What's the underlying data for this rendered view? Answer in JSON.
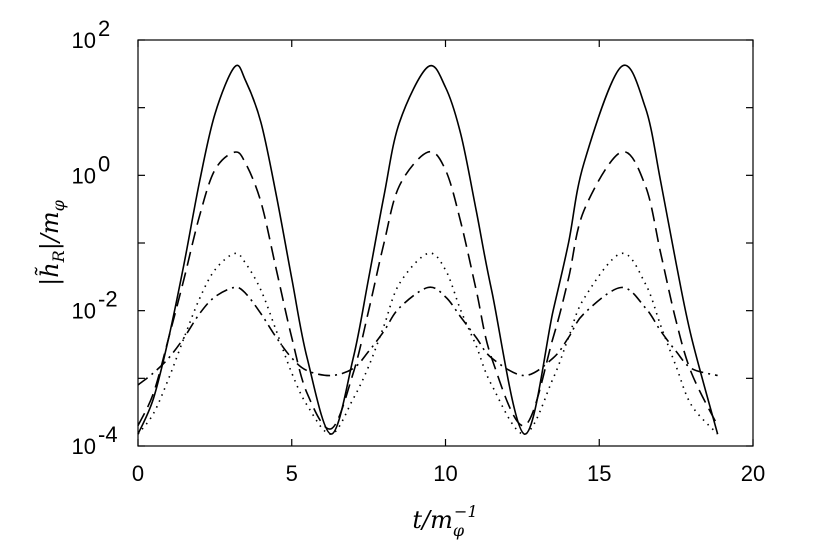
{
  "chart_data": {
    "type": "line",
    "xlabel": "t/m_φ^{-1}",
    "ylabel": "|h̃_R|/m_φ",
    "xlim": [
      0,
      20
    ],
    "ylim": [
      0.0001,
      100
    ],
    "yscale": "log",
    "grid": false,
    "xticks": [
      0,
      5,
      10,
      15,
      20
    ],
    "yticks": [
      {
        "value": 0.0001,
        "base": "10",
        "exp": "-4"
      },
      {
        "value": 0.01,
        "base": "10",
        "exp": "-2"
      },
      {
        "value": 1,
        "base": "10",
        "exp": "0"
      },
      {
        "value": 100,
        "base": "10",
        "exp": "2"
      }
    ],
    "series": [
      {
        "style": "solid",
        "x": [
          0,
          0.5,
          1.0,
          1.5,
          2.0,
          2.5,
          3.1416,
          3.5,
          4.0,
          4.5,
          5.0,
          5.5,
          6.2832,
          7.0,
          7.5,
          8.0,
          8.5,
          9.4248,
          10.0,
          10.5,
          11.0,
          11.5,
          12.5664,
          13.5,
          14.0,
          14.5,
          15.708,
          16.5,
          17.0,
          17.5,
          18.0,
          18.8496
        ],
        "y": [
          0.00015,
          0.0005,
          0.004,
          0.05,
          0.8,
          8,
          40,
          25,
          6,
          0.5,
          0.03,
          0.002,
          0.00015,
          0.002,
          0.03,
          0.5,
          6,
          40,
          20,
          4,
          0.3,
          0.02,
          0.00015,
          0.01,
          0.1,
          1.5,
          40,
          10,
          0.8,
          0.05,
          0.004,
          0.00015
        ]
      },
      {
        "style": "dashed",
        "x": [
          0,
          0.5,
          1.0,
          1.5,
          2.0,
          2.5,
          3.1416,
          3.5,
          4.0,
          4.5,
          5.0,
          5.5,
          6.2832,
          7.0,
          7.5,
          8.0,
          8.5,
          9.4248,
          10.0,
          10.5,
          11.0,
          11.5,
          12.5664,
          13.5,
          14.0,
          14.5,
          15.708,
          16.5,
          17.0,
          17.5,
          18.0,
          18.8496
        ],
        "y": [
          0.0002,
          0.0006,
          0.004,
          0.03,
          0.25,
          1.2,
          2.2,
          1.5,
          0.4,
          0.04,
          0.004,
          0.0006,
          0.00018,
          0.0012,
          0.01,
          0.1,
          0.7,
          2.2,
          1.2,
          0.2,
          0.02,
          0.002,
          0.0002,
          0.004,
          0.03,
          0.3,
          2.2,
          0.7,
          0.07,
          0.007,
          0.0012,
          0.0002
        ]
      },
      {
        "style": "dotted",
        "x": [
          0,
          0.5,
          1.0,
          1.5,
          2.0,
          2.5,
          3.1416,
          3.5,
          4.0,
          4.5,
          5.0,
          5.5,
          6.2832,
          7.0,
          7.5,
          8.0,
          8.5,
          9.4248,
          10.0,
          10.5,
          11.0,
          11.5,
          12.5664,
          13.5,
          14.0,
          14.5,
          15.708,
          16.5,
          17.0,
          17.5,
          18.0,
          18.8496
        ],
        "y": [
          0.00015,
          0.0003,
          0.001,
          0.004,
          0.015,
          0.04,
          0.07,
          0.05,
          0.02,
          0.005,
          0.0012,
          0.0004,
          0.00015,
          0.0005,
          0.0015,
          0.006,
          0.025,
          0.07,
          0.04,
          0.01,
          0.003,
          0.0008,
          0.00015,
          0.001,
          0.004,
          0.015,
          0.07,
          0.025,
          0.006,
          0.0015,
          0.0004,
          0.00015
        ]
      },
      {
        "style": "dashdot",
        "x": [
          0,
          0.5,
          1.0,
          1.5,
          2.0,
          2.5,
          3.1416,
          3.5,
          4.0,
          4.5,
          5.0,
          5.5,
          6.2832,
          7.0,
          7.5,
          8.0,
          8.5,
          9.4248,
          10.0,
          10.5,
          11.0,
          11.5,
          12.5664,
          13.5,
          14.0,
          14.5,
          15.708,
          16.5,
          17.0,
          17.5,
          18.0,
          18.8496
        ],
        "y": [
          0.0008,
          0.0012,
          0.002,
          0.004,
          0.009,
          0.016,
          0.022,
          0.018,
          0.009,
          0.004,
          0.002,
          0.0013,
          0.0011,
          0.0014,
          0.0025,
          0.005,
          0.011,
          0.022,
          0.016,
          0.008,
          0.004,
          0.002,
          0.0011,
          0.002,
          0.004,
          0.009,
          0.022,
          0.011,
          0.005,
          0.0025,
          0.0014,
          0.0011
        ]
      }
    ]
  }
}
